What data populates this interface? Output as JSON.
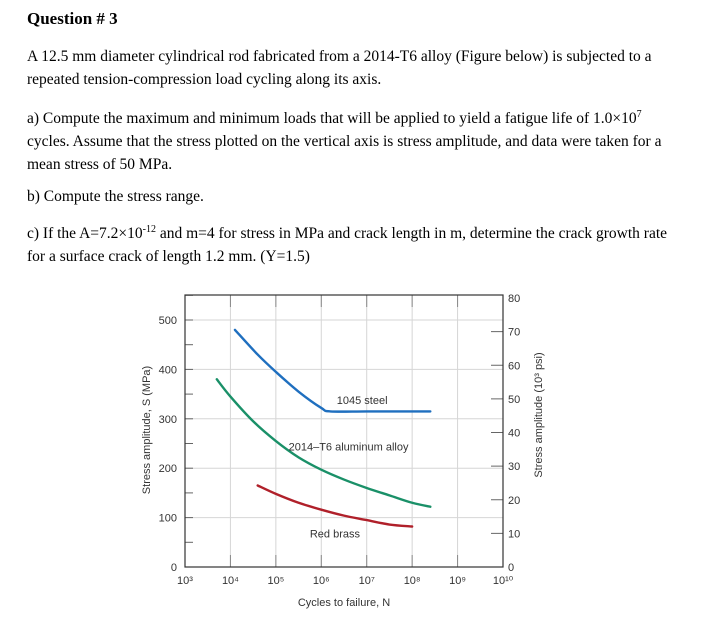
{
  "question": {
    "title": "Question # 3",
    "intro": "A 12.5 mm diameter cylindrical rod fabricated from a 2014-T6 alloy (Figure below) is subjected to a repeated tension-compression load cycling along its axis.",
    "part_a_pre": "a) Compute the maximum and minimum loads that will be applied to yield a fatigue life of 1.0×10",
    "part_a_sup": "7",
    "part_a_post": " cycles.  Assume that the stress plotted on the vertical axis is stress amplitude, and data were taken for a mean stress of 50 MPa.",
    "part_b": "b) Compute the stress range.",
    "part_c_pre": "c) If the A=7.2×10",
    "part_c_sup": "-12",
    "part_c_post": " and m=4 for stress in MPa and crack length in m, determine the crack growth rate for a surface crack of length 1.2 mm. (Y=1.5)"
  },
  "chart_data": {
    "type": "line",
    "title": "",
    "xlabel": "Cycles to failure, N",
    "ylabel": "Stress amplitude, S (MPa)",
    "ylabel_right": "Stress amplitude (10³ psi)",
    "xscale": "log",
    "xlim": [
      1000,
      10000000000
    ],
    "ylim": [
      0,
      550
    ],
    "ylim_right": [
      0,
      80
    ],
    "grid": true,
    "x_ticks": [
      "10³",
      "10⁴",
      "10⁵",
      "10⁶",
      "10⁷",
      "10⁸",
      "10⁹",
      "10¹⁰"
    ],
    "y_ticks": [
      0,
      100,
      200,
      300,
      400,
      500
    ],
    "y_ticks_right": [
      0,
      10,
      20,
      30,
      40,
      50,
      60,
      70,
      80
    ],
    "series": [
      {
        "name": "1045 steel",
        "color": "#1f6fbf",
        "x_log10": [
          4.1,
          4.6,
          5.0,
          5.5,
          6.0,
          6.2,
          7.0,
          8.0,
          8.4
        ],
        "values": [
          480,
          430,
          395,
          355,
          322,
          315,
          315,
          315,
          315
        ]
      },
      {
        "name": "2014–T6 aluminum alloy",
        "color": "#1a9068",
        "x_log10": [
          3.7,
          4.0,
          4.5,
          5.0,
          5.5,
          6.0,
          6.5,
          7.0,
          7.5,
          8.0,
          8.4
        ],
        "values": [
          380,
          345,
          295,
          255,
          222,
          197,
          177,
          160,
          145,
          130,
          122
        ]
      },
      {
        "name": "Red brass",
        "color": "#b0202a",
        "x_log10": [
          4.6,
          5.0,
          5.5,
          6.0,
          6.5,
          7.0,
          7.5,
          8.0
        ],
        "values": [
          165,
          148,
          130,
          116,
          104,
          95,
          86,
          82
        ]
      }
    ],
    "annotations": [
      {
        "text": "1045 steel",
        "x_log10": 6.9,
        "y": 330
      },
      {
        "text": "2014–T6 aluminum alloy",
        "x_log10": 6.6,
        "y": 236
      },
      {
        "text": "Red brass",
        "x_log10": 6.3,
        "y": 60
      }
    ]
  }
}
